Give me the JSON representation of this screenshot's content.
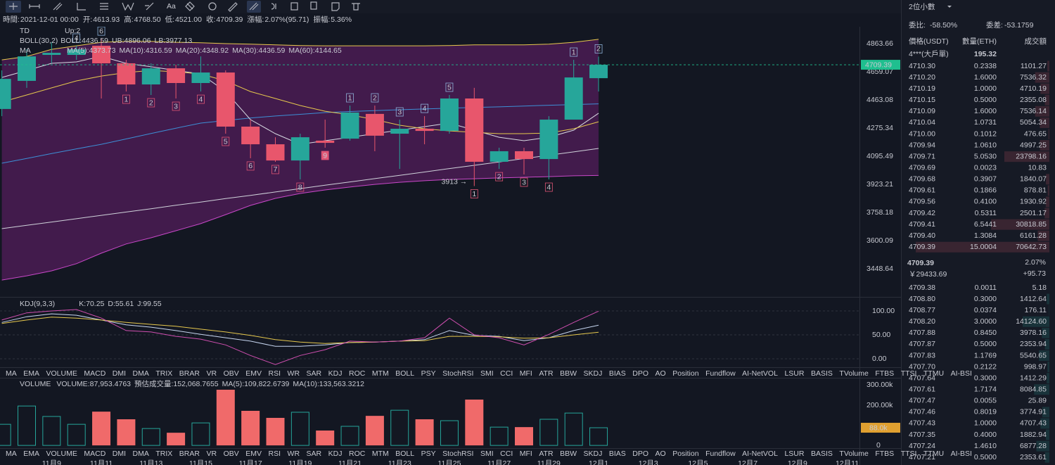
{
  "toolbar": {
    "font_button": "Aa"
  },
  "info_bar": [
    {
      "label": "時間:",
      "value": "2021-12-01 00:00"
    },
    {
      "label": "开:",
      "value": "4613.93"
    },
    {
      "label": "高:",
      "value": "4768.50"
    },
    {
      "label": "低:",
      "value": "4521.00"
    },
    {
      "label": "收:",
      "value": "4709.39"
    },
    {
      "label": "漲幅:",
      "value": "2.07%(95.71)"
    },
    {
      "label": "振幅:",
      "value": "5.36%"
    }
  ],
  "main": {
    "td_label": "TD",
    "td_up": "Up:2",
    "boll_label": "BOLL(30,2)",
    "boll": "BOLL:4436.59",
    "ub": "UB:4896.06",
    "lb": "LB:3977.13",
    "ma_label": "MA",
    "ma": [
      "MA(5):4373.73",
      "MA(10):4316.59",
      "MA(20):4348.92",
      "MA(30):4436.59",
      "MA(60):4144.65"
    ],
    "yscale": "log",
    "ylim": [
      3304,
      4991
    ],
    "yticks": [
      4863.66,
      4659.07,
      4463.08,
      4275.34,
      4095.49,
      3923.21,
      3758.18,
      3600.09,
      3448.64
    ],
    "last_price": 4709.39,
    "candles": {
      "open": [
        4402,
        4595,
        4781,
        4781,
        4848,
        4720,
        4570,
        4684,
        4580,
        4654,
        4285,
        4171,
        4069,
        4194,
        4207,
        4369,
        4239,
        4271,
        4257,
        4473,
        4061,
        4127,
        4078,
        4331,
        4613.93
      ],
      "high": [
        4669,
        4822,
        4874,
        4848,
        4900,
        4745,
        4720,
        4710,
        4770,
        4669,
        4331,
        4216,
        4239,
        4331,
        4425,
        4425,
        4331,
        4354,
        4497,
        4546,
        4149,
        4149,
        4354,
        4745,
        4768.5
      ],
      "low": [
        4354,
        4546,
        4720,
        4745,
        4473,
        4521,
        4497,
        4473,
        4521,
        4239,
        4083,
        4061,
        3953,
        4149,
        4194,
        4127,
        4017,
        4171,
        4239,
        3913,
        4017,
        3983,
        3953,
        4331,
        4521
      ],
      "close": [
        4609,
        4770,
        4796,
        4822,
        4720,
        4570,
        4684,
        4580,
        4654,
        4285,
        4171,
        4069,
        4216,
        4180,
        4378,
        4226,
        4271,
        4257,
        4473,
        4061,
        4127,
        4078,
        4331,
        4619,
        4709.39
      ]
    },
    "lines": {
      "ub": [
        4745,
        4770,
        4822,
        4848,
        4874,
        4880,
        4880,
        4874,
        4870,
        4864,
        4860,
        4855,
        4850,
        4848,
        4848,
        4848,
        4848,
        4848,
        4850,
        4855,
        4855,
        4855,
        4860,
        4874,
        4896.06
      ],
      "mid": [
        4052,
        4082,
        4112,
        4142,
        4171,
        4205,
        4240,
        4275,
        4308,
        4325,
        4342,
        4355,
        4366,
        4378,
        4385,
        4391,
        4397,
        4402,
        4407,
        4412,
        4416,
        4422,
        4427,
        4432,
        4436.59
      ],
      "lb": [
        3390,
        3412,
        3438,
        3476,
        3532,
        3582,
        3616,
        3655,
        3695,
        3746,
        3799,
        3840,
        3869,
        3890,
        3907,
        3923,
        3936,
        3945,
        3953,
        3957,
        3962,
        3966,
        3970,
        3975,
        3977.13
      ],
      "ma5": [
        4619,
        4669,
        4720,
        4730,
        4770,
        4720,
        4695,
        4669,
        4644,
        4521,
        4331,
        4239,
        4171,
        4194,
        4216,
        4239,
        4262,
        4285,
        4308,
        4262,
        4216,
        4194,
        4216,
        4262,
        4373.73
      ],
      "ma10": [
        4449,
        4497,
        4546,
        4595,
        4629,
        4654,
        4669,
        4659,
        4644,
        4595,
        4521,
        4473,
        4425,
        4387,
        4363,
        4331,
        4294,
        4271,
        4257,
        4248,
        4239,
        4239,
        4243,
        4271,
        4316.59
      ],
      "ma60": [
        3667,
        3686,
        3704,
        3723,
        3742,
        3761,
        3780,
        3800,
        3819,
        3839,
        3858,
        3878,
        3898,
        3918,
        3938,
        3958,
        3978,
        3998,
        4019,
        4039,
        4060,
        4081,
        4102,
        4123,
        4144.65
      ]
    },
    "td_above": [
      null,
      null,
      null,
      "4",
      "6",
      null,
      null,
      null,
      null,
      null,
      null,
      null,
      null,
      null,
      "1",
      "2",
      "3",
      "4",
      "5",
      null,
      null,
      null,
      null,
      "1",
      "2"
    ],
    "td_below": [
      null,
      null,
      null,
      null,
      null,
      "1",
      "2",
      "3",
      "4",
      "5",
      "6",
      "7",
      "8",
      "9",
      null,
      null,
      null,
      null,
      null,
      "1",
      "2",
      "3",
      "4",
      null,
      null
    ],
    "low_note": "3913 →"
  },
  "kdj": {
    "label": "KDJ(9,3,3)",
    "k_label": "K:70.25",
    "d_label": "D:55.61",
    "j_label": "J:99.55",
    "ylim": [
      -17.6,
      125
    ],
    "yticks": [
      {
        "value": 100,
        "label": "100.00"
      },
      {
        "value": 50,
        "label": "50.00"
      },
      {
        "value": 0,
        "label": "0.00"
      }
    ],
    "k": [
      76,
      88,
      94,
      91,
      81,
      71,
      66,
      59,
      51,
      44,
      37,
      26,
      26,
      29,
      34,
      35,
      37,
      40,
      59,
      49,
      47,
      38,
      44,
      59,
      70.25
    ],
    "d": [
      74,
      81,
      87,
      85,
      81,
      76,
      72,
      68,
      62,
      56,
      49,
      40,
      35,
      32,
      34,
      35,
      37,
      38,
      47,
      47,
      46,
      43,
      44,
      50,
      55.61
    ],
    "j": [
      81,
      96,
      100,
      103,
      85,
      59,
      56,
      47,
      41,
      29,
      7,
      -12,
      7,
      19,
      37,
      35,
      37,
      44,
      85,
      50,
      44,
      29,
      51,
      76,
      99.55
    ]
  },
  "tabs": [
    "MA",
    "EMA",
    "VOLUME",
    "MACD",
    "DMI",
    "DMA",
    "TRIX",
    "BRAR",
    "VR",
    "OBV",
    "EMV",
    "RSI",
    "WR",
    "SAR",
    "KDJ",
    "ROC",
    "MTM",
    "BOLL",
    "PSY",
    "StochRSI",
    "SMI",
    "CCI",
    "MFI",
    "ATR",
    "BBW",
    "SKDJ",
    "BIAS",
    "DPO",
    "AO",
    "Position",
    "Fundflow",
    "AI-NetVOL",
    "LSUR",
    "BASIS",
    "TVolume",
    "FTBS",
    "TTSI",
    "TTMU",
    "AI-BSI"
  ],
  "tab_rows": [
    {
      "active": "KDJ",
      "muted": [
        "VOLUME",
        "AI-NetVOL",
        "AI-BSI"
      ]
    },
    {
      "active": "VOLUME",
      "muted": [
        "KDJ",
        "AI-NetVOL",
        "AI-BSI"
      ]
    }
  ],
  "volume": {
    "label": "VOLUME",
    "volume": "VOLUME:87,953.4763",
    "estimate": "預估成交量:152,068.7655",
    "ma5": "MA(5):109,822.6739",
    "ma10": "MA(10):133,563.3212",
    "ylim": [
      -24000,
      326000
    ],
    "yticks": [
      {
        "value": 300000,
        "label": "300.00k"
      },
      {
        "value": 200000,
        "label": "200.00k"
      },
      0
    ],
    "current": {
      "value": 87953.4763,
      "label": "88.0k"
    },
    "values": [
      105000,
      196000,
      144000,
      105000,
      168000,
      130000,
      84000,
      63000,
      112000,
      277000,
      172000,
      137000,
      165000,
      74000,
      95000,
      147000,
      175000,
      130000,
      123000,
      228000,
      91000,
      91000,
      130000,
      161000,
      87953.4763
    ]
  },
  "dates": [
    "11月9",
    "11月11",
    "11月13",
    "11月15",
    "11月17",
    "11月19",
    "11月21",
    "11月23",
    "11月25",
    "11月27",
    "11月29",
    "12月1",
    "12月3",
    "12月5",
    "12月7",
    "12月9",
    "12月11"
  ],
  "order_book": {
    "precision": "2位小數",
    "ratio_label": "委比:",
    "ratio": "-58.50%",
    "diff_label": "委差:",
    "diff": "-53.1759",
    "columns": [
      "價格(USDT)",
      "數量(ETH)",
      "成交額"
    ],
    "big_order": [
      "4***(大戶單)",
      "195.32"
    ],
    "asks": [
      [
        "4710.30",
        "0.2338",
        "1101.27"
      ],
      [
        "4710.20",
        "1.6000",
        "7536.32"
      ],
      [
        "4710.19",
        "1.0000",
        "4710.19"
      ],
      [
        "4710.15",
        "0.5000",
        "2355.08"
      ],
      [
        "4710.09",
        "1.6000",
        "7536.14"
      ],
      [
        "4710.04",
        "1.0731",
        "5054.34"
      ],
      [
        "4710.00",
        "0.1012",
        "476.65"
      ],
      [
        "4709.94",
        "1.0610",
        "4997.25"
      ],
      [
        "4709.71",
        "5.0530",
        "23798.16"
      ],
      [
        "4709.69",
        "0.0023",
        "10.83"
      ],
      [
        "4709.68",
        "0.3907",
        "1840.07"
      ],
      [
        "4709.61",
        "0.1866",
        "878.81"
      ],
      [
        "4709.56",
        "0.4100",
        "1930.92"
      ],
      [
        "4709.42",
        "0.5311",
        "2501.17"
      ],
      [
        "4709.41",
        "6.5441",
        "30818.85"
      ],
      [
        "4709.40",
        "1.3084",
        "6161.28"
      ],
      [
        "4709.39",
        "15.0004",
        "70642.73"
      ]
    ],
    "last": "4709.39",
    "change_pct": "2.07%",
    "cny": "￥29433.69",
    "change": "+95.73",
    "bids": [
      [
        "4709.38",
        "0.0011",
        "5.18"
      ],
      [
        "4708.80",
        "0.3000",
        "1412.64"
      ],
      [
        "4708.77",
        "0.0374",
        "176.11"
      ],
      [
        "4708.20",
        "3.0000",
        "14124.60"
      ],
      [
        "4707.88",
        "0.8450",
        "3978.16"
      ],
      [
        "4707.87",
        "0.5000",
        "2353.94"
      ],
      [
        "4707.83",
        "1.1769",
        "5540.65"
      ],
      [
        "4707.70",
        "0.2122",
        "998.97"
      ],
      [
        "4707.64",
        "0.3000",
        "1412.29"
      ],
      [
        "4707.61",
        "1.7174",
        "8084.85"
      ],
      [
        "4707.47",
        "0.0055",
        "25.89"
      ],
      [
        "4707.46",
        "0.8019",
        "3774.91"
      ],
      [
        "4707.43",
        "1.0000",
        "4707.43"
      ],
      [
        "4707.35",
        "0.4000",
        "1882.94"
      ],
      [
        "4707.24",
        "1.4610",
        "6877.28"
      ],
      [
        "4707.21",
        "0.5000",
        "2353.61"
      ]
    ]
  }
}
